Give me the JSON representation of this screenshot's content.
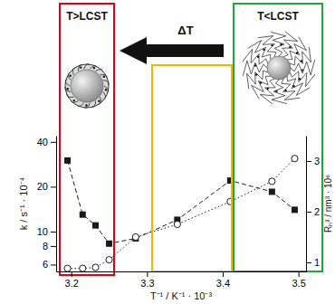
{
  "chart_data": {
    "type": "line",
    "xlabel": "T⁻¹ / K⁻¹ · 10⁻³",
    "ylabel": "k / s⁻¹ · 10⁻⁴",
    "y2label": "Rₕ³ / nm³ · 10⁶",
    "annotations": [
      "T>LCST",
      "T<LCST",
      "ΔT"
    ],
    "x": [
      3.195,
      3.215,
      3.232,
      3.25,
      3.285,
      3.34,
      3.41,
      3.465,
      3.495
    ],
    "xlim": [
      3.18,
      3.51
    ],
    "xticks": [
      3.2,
      3.3,
      3.4,
      3.5
    ],
    "ylim": [
      5.4,
      44
    ],
    "yticks": [
      6,
      8,
      10,
      20,
      40
    ],
    "y2lim": [
      0.82,
      3.5
    ],
    "y2ticks": [
      1,
      2,
      3
    ],
    "log": "y",
    "series": [
      {
        "color": "#1a1a1a",
        "marker": "square",
        "line_style": "dashed",
        "values": [
          30,
          13,
          11,
          8.3,
          9,
          12,
          22,
          18.5,
          14
        ]
      },
      {
        "color": "#1a1a1a",
        "marker": "circle",
        "line_style": "dotted",
        "axis": "y2",
        "values": [
          0.88,
          0.88,
          0.9,
          1.05,
          1.5,
          1.75,
          2.2,
          2.6,
          3.05
        ]
      }
    ]
  }
}
